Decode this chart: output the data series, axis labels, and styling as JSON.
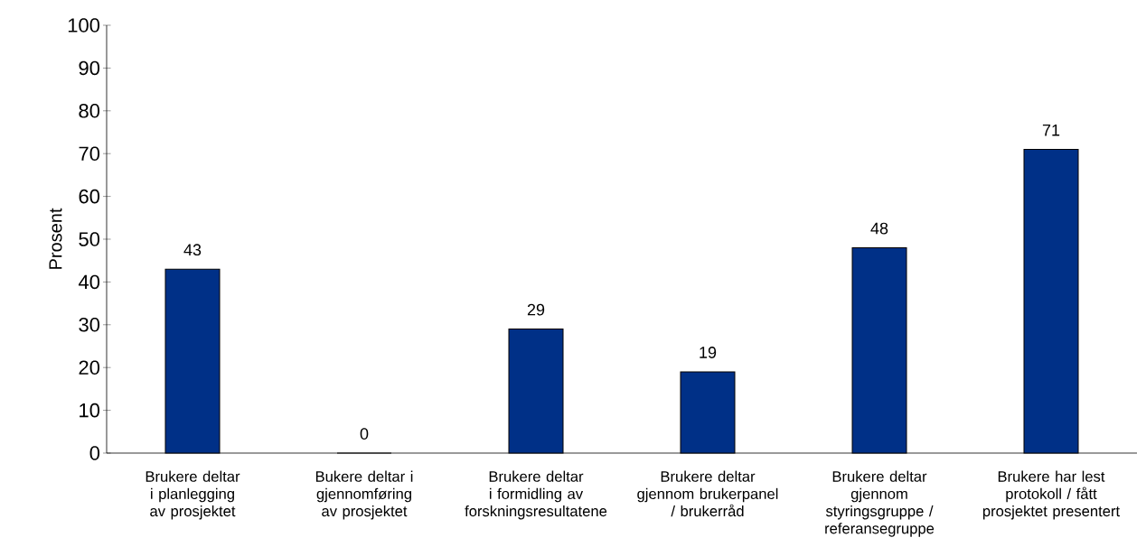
{
  "chart_data": {
    "type": "bar",
    "ylabel": "Prosent",
    "categories": [
      "Brukere deltar i planlegging av prosjektet",
      "Bukere deltar i gjennomføring av prosjektet",
      "Brukere deltar i formidling av forskningsresultatene",
      "Brukere deltar gjennom brukerpanel / brukerråd",
      "Brukere deltar gjennom styringsgruppe / referansegruppe",
      "Brukere har lest protokoll / fått prosjektet presentert"
    ],
    "values": [
      43,
      0,
      29,
      19,
      48,
      71
    ],
    "color": "#003087",
    "ylim": [
      0,
      100
    ],
    "yticks": [
      0,
      10,
      20,
      30,
      40,
      50,
      60,
      70,
      80,
      90,
      100
    ],
    "data_labels": true
  }
}
